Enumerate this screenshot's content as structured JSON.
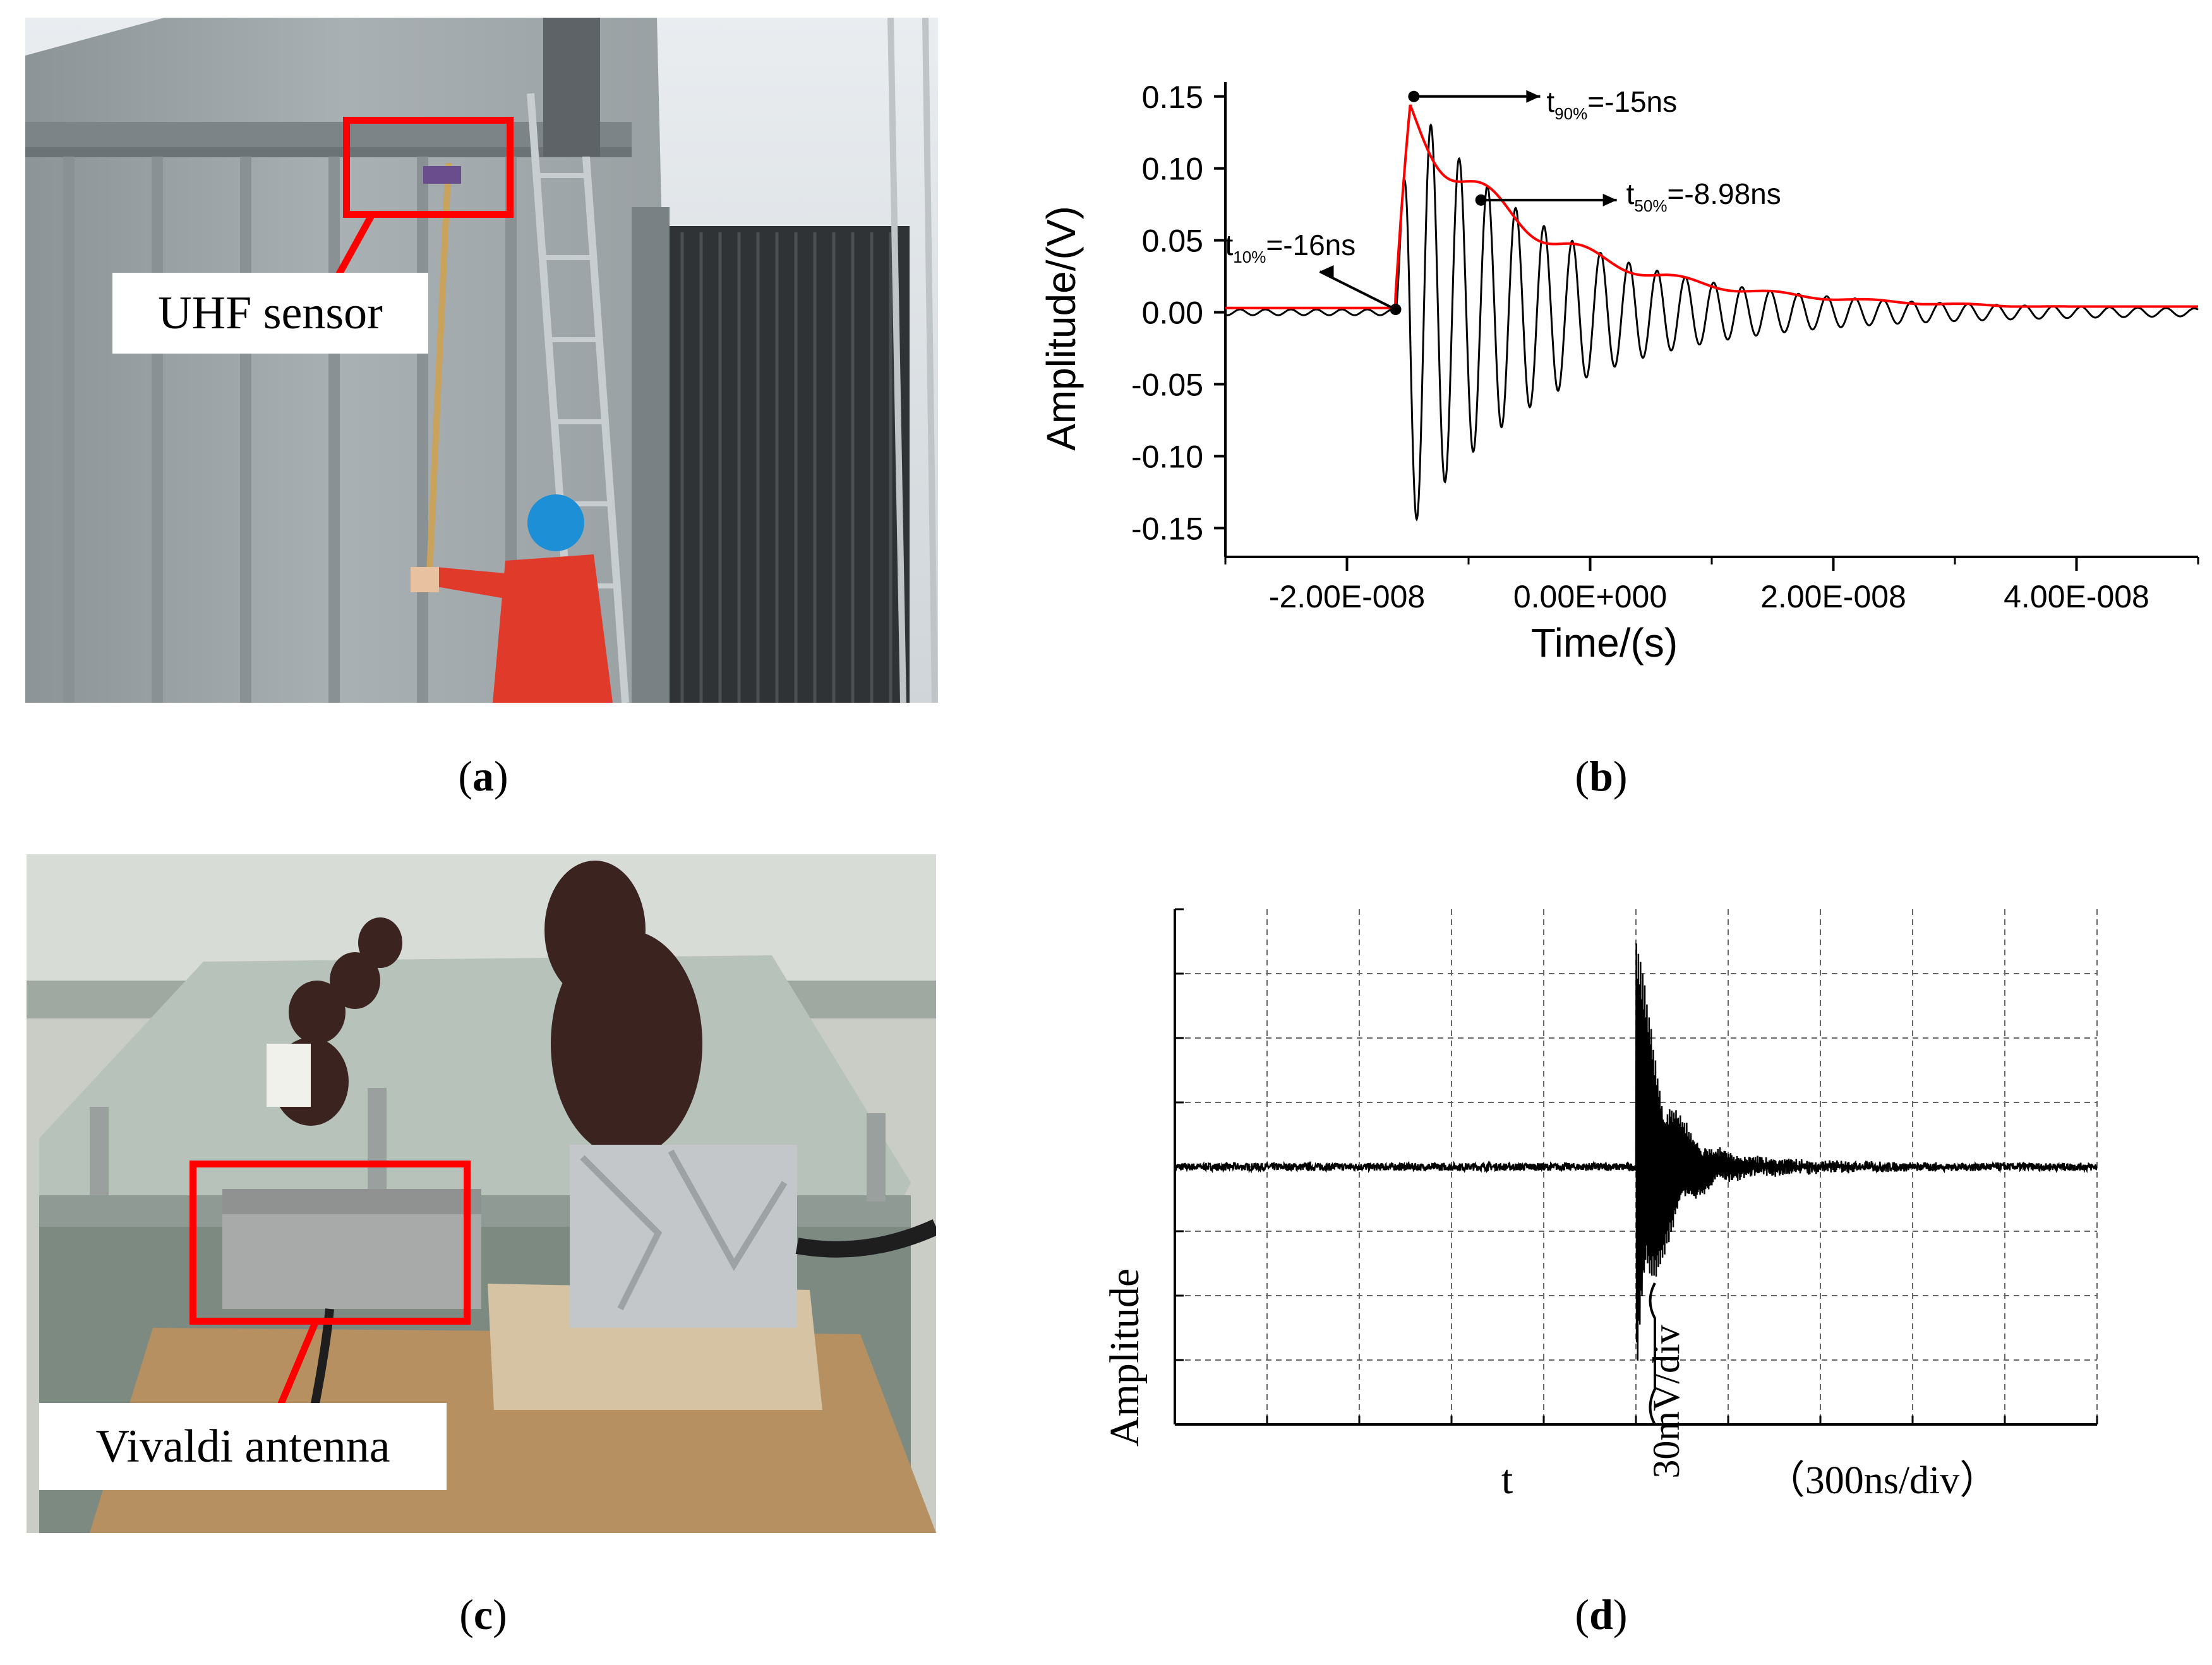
{
  "panels": {
    "a": {
      "caption_open": "(",
      "caption_letter": "a",
      "caption_close": ")",
      "callout_label": "UHF sensor"
    },
    "b": {
      "caption_open": "(",
      "caption_letter": "b",
      "caption_close": ")"
    },
    "c": {
      "caption_open": "(",
      "caption_letter": "c",
      "caption_close": ")",
      "callout_label": "Vivaldi antenna"
    },
    "d": {
      "caption_open": "(",
      "caption_letter": "d",
      "caption_close": ")"
    }
  },
  "chart_data": [
    {
      "panel": "b",
      "type": "line",
      "xlabel": "Time/(s)",
      "ylabel": "Amplitude/(V)",
      "xlim": [
        -3e-08,
        5e-08
      ],
      "ylim": [
        -0.17,
        0.16
      ],
      "x_ticks": [
        -2e-08,
        0.0,
        2e-08,
        4e-08
      ],
      "x_tick_labels": [
        "-2.00E-008",
        "0.00E+000",
        "2.00E-008",
        "4.00E-008"
      ],
      "y_ticks": [
        0.15,
        0.1,
        0.05,
        0.0,
        -0.05,
        -0.1,
        -0.15
      ],
      "y_tick_labels": [
        "0.15",
        "0.10",
        "0.05",
        "0.00",
        "-0.05",
        "-0.10",
        "-0.15"
      ],
      "series_colors": {
        "signal": "#000000",
        "envelope": "#ff0000"
      },
      "annotations": [
        {
          "base": "t",
          "sub": "10%",
          "rest": "=-16ns",
          "x": -1.6e-08,
          "y": 0.002
        },
        {
          "base": "t",
          "sub": "90%",
          "rest": "=-15ns",
          "x": -1.45e-08,
          "y": 0.15
        },
        {
          "base": "t",
          "sub": "50%",
          "rest": "=-8.98ns",
          "x": -8.98e-09,
          "y": 0.078
        }
      ]
    },
    {
      "panel": "d",
      "type": "line",
      "xlabel": "t",
      "ylabel": "Amplitude",
      "x_scale_label": "（300ns/div）",
      "y_scale_label": "30mV/div",
      "grid": true,
      "grid_divisions": {
        "x": 10,
        "y": 8
      },
      "series_colors": {
        "signal": "#000000"
      },
      "pulse_start_division": 5,
      "peak_divisions": 3.6
    }
  ]
}
